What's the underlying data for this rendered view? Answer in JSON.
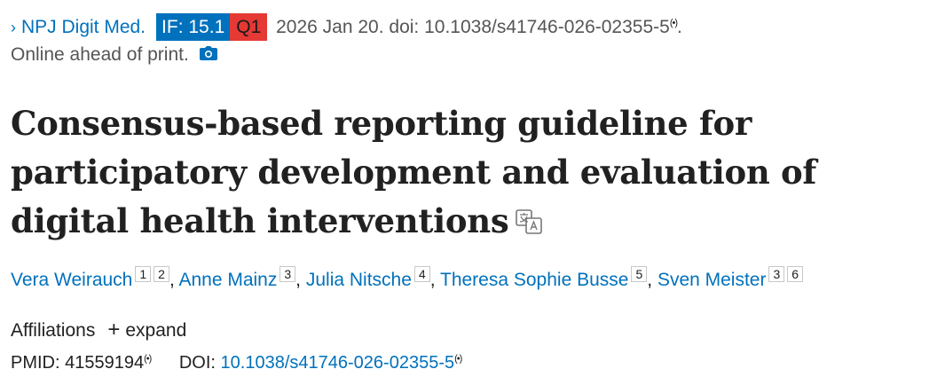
{
  "citation": {
    "chevron": "›",
    "journal": "NPJ Digit Med.",
    "impact_factor": "IF: 15.1",
    "quartile": "Q1",
    "date": "2026 Jan 20.",
    "doi_text": "doi: 10.1038/s41746-026-02355-5",
    "broadcast_mark": "(•)",
    "trailing": ".",
    "status": "Online ahead of print."
  },
  "title": "Consensus-based reporting guideline for participatory development and evaluation of digital health interventions",
  "authors": [
    {
      "name": "Vera Weirauch",
      "affiliations": [
        "1",
        "2"
      ]
    },
    {
      "name": "Anne Mainz",
      "affiliations": [
        "3"
      ]
    },
    {
      "name": "Julia Nitsche",
      "affiliations": [
        "4"
      ]
    },
    {
      "name": "Theresa Sophie Busse",
      "affiliations": [
        "5"
      ]
    },
    {
      "name": "Sven Meister",
      "affiliations": [
        "3",
        "6"
      ]
    }
  ],
  "affiliations": {
    "label": "Affiliations",
    "plus": "+",
    "expand": "expand"
  },
  "ids": {
    "pmid_label": "PMID: 41559194",
    "doi_label": "DOI:",
    "doi_value": "10.1038/s41746-026-02355-5"
  },
  "icons": [
    "chevron-right-icon",
    "broadcast-icon",
    "camera-icon",
    "translate-icon"
  ],
  "colors": {
    "link": "#0071bc",
    "if_badge": "#0071bc",
    "q_badge": "#e53935"
  }
}
